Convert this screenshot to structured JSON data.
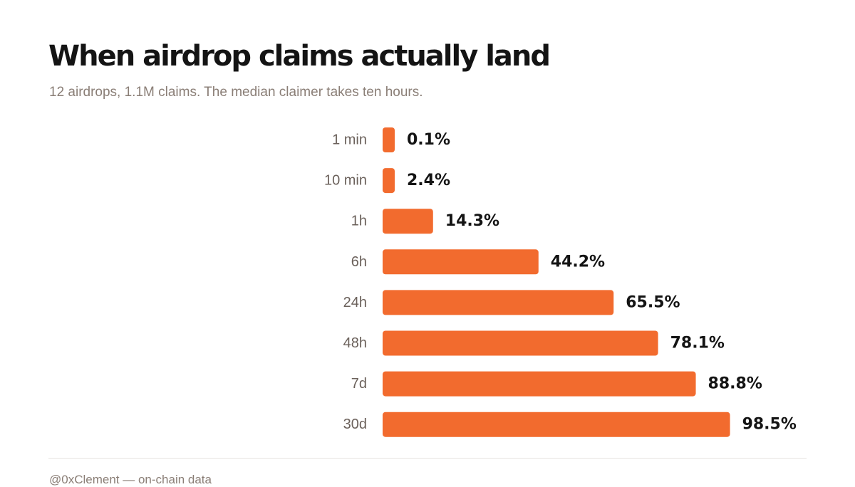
{
  "chart_data": {
    "type": "bar",
    "orientation": "horizontal",
    "title": "When airdrop claims actually land",
    "subtitle": "12 airdrops, 1.1M claims. The median claimer takes ten hours.",
    "categories": [
      "1 min",
      "10 min",
      "1h",
      "6h",
      "24h",
      "48h",
      "7d",
      "30d"
    ],
    "values": [
      0.1,
      2.4,
      14.3,
      44.2,
      65.5,
      78.1,
      88.8,
      98.5
    ],
    "value_labels": [
      "0.1%",
      "2.4%",
      "14.3%",
      "44.2%",
      "65.5%",
      "78.1%",
      "88.8%",
      "98.5%"
    ],
    "bar_color": "#f26b2e",
    "grid": false,
    "legend": "none"
  },
  "footer": {
    "source": "@0xClement — on-chain data"
  }
}
